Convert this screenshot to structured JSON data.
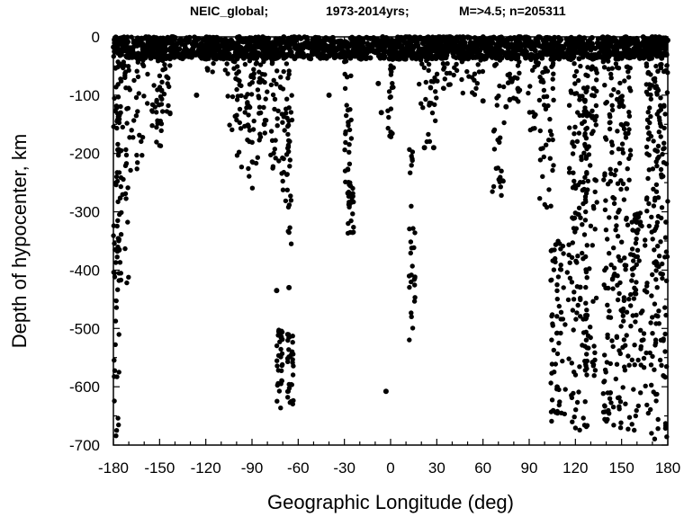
{
  "chart_data": {
    "type": "scatter",
    "title_parts": [
      "NEIC_global;",
      "1973-2014yrs;",
      "M=>4.5; n=205311"
    ],
    "xlabel": "Geographic Longitude  (deg)",
    "ylabel": "Depth of hypocenter, km",
    "xlim": [
      -180,
      180
    ],
    "ylim": [
      -700,
      0
    ],
    "xticks": [
      -180,
      -150,
      -120,
      -90,
      -60,
      -30,
      0,
      30,
      60,
      90,
      120,
      150,
      180
    ],
    "yticks": [
      0,
      -100,
      -200,
      -300,
      -400,
      -500,
      -600,
      -700
    ],
    "grid": false,
    "marker_color": "#000000",
    "clusters": [
      {
        "lon": [
          -180,
          -176
        ],
        "depth_range": [
          -700,
          0
        ]
      },
      {
        "lon": [
          -178,
          -170
        ],
        "depth_range": [
          -450,
          0
        ]
      },
      {
        "lon": [
          -172,
          -160
        ],
        "depth_range": [
          -230,
          0
        ]
      },
      {
        "lon": [
          -158,
          -148
        ],
        "depth_range": [
          -200,
          0
        ]
      },
      {
        "lon": [
          -150,
          -142
        ],
        "depth_range": [
          -150,
          0
        ]
      },
      {
        "lon": [
          -120,
          -114
        ],
        "depth_range": [
          -60,
          0
        ]
      },
      {
        "lon": [
          -108,
          -98
        ],
        "depth_range": [
          -160,
          0
        ]
      },
      {
        "lon": [
          -100,
          -92
        ],
        "depth_range": [
          -230,
          0
        ]
      },
      {
        "lon": [
          -93,
          -85
        ],
        "depth_range": [
          -280,
          0
        ]
      },
      {
        "lon": [
          -86,
          -80
        ],
        "depth_range": [
          -200,
          0
        ]
      },
      {
        "lon": [
          -78,
          -72
        ],
        "depth_range": [
          -230,
          0
        ]
      },
      {
        "lon": [
          -72,
          -66
        ],
        "depth_range": [
          -300,
          0
        ]
      },
      {
        "lon": [
          -68,
          -64
        ],
        "depth_range": [
          -360,
          0
        ]
      },
      {
        "lon": [
          -74,
          -70
        ],
        "depth_range": [
          -650,
          -500
        ]
      },
      {
        "lon": [
          -67,
          -63
        ],
        "depth_range": [
          -640,
          -510
        ]
      },
      {
        "lon": [
          -30,
          -25
        ],
        "depth_range": [
          -250,
          0
        ]
      },
      {
        "lon": [
          -28,
          -24
        ],
        "depth_range": [
          -340,
          -250
        ]
      },
      {
        "lon": [
          -2,
          2
        ],
        "depth_range": [
          -180,
          0
        ]
      },
      {
        "lon": [
          12,
          16
        ],
        "depth_range": [
          -520,
          -190
        ]
      },
      {
        "lon": [
          18,
          32
        ],
        "depth_range": [
          -180,
          0
        ]
      },
      {
        "lon": [
          34,
          44
        ],
        "depth_range": [
          -90,
          0
        ]
      },
      {
        "lon": [
          46,
          60
        ],
        "depth_range": [
          -100,
          0
        ]
      },
      {
        "lon": [
          66,
          74
        ],
        "depth_range": [
          -285,
          0
        ]
      },
      {
        "lon": [
          76,
          84
        ],
        "depth_range": [
          -120,
          0
        ]
      },
      {
        "lon": [
          88,
          96
        ],
        "depth_range": [
          -160,
          0
        ]
      },
      {
        "lon": [
          96,
          106
        ],
        "depth_range": [
          -300,
          0
        ]
      },
      {
        "lon": [
          104,
          116
        ],
        "depth_range": [
          -660,
          -350
        ]
      },
      {
        "lon": [
          116,
          128
        ],
        "depth_range": [
          -680,
          0
        ]
      },
      {
        "lon": [
          126,
          134
        ],
        "depth_range": [
          -600,
          -50
        ]
      },
      {
        "lon": [
          138,
          146
        ],
        "depth_range": [
          -670,
          0
        ]
      },
      {
        "lon": [
          146,
          156
        ],
        "depth_range": [
          -680,
          0
        ]
      },
      {
        "lon": [
          156,
          166
        ],
        "depth_range": [
          -680,
          -300
        ]
      },
      {
        "lon": [
          166,
          174
        ],
        "depth_range": [
          -700,
          0
        ]
      },
      {
        "lon": [
          172,
          180
        ],
        "depth_range": [
          -700,
          0
        ]
      }
    ],
    "sparse_points": [
      {
        "lon": -126,
        "depth": -100
      },
      {
        "lon": -82,
        "depth": -150
      },
      {
        "lon": -74,
        "depth": -435
      },
      {
        "lon": -66,
        "depth": -430
      },
      {
        "lon": -40,
        "depth": -100
      },
      {
        "lon": -8,
        "depth": -80
      },
      {
        "lon": -6,
        "depth": -130
      },
      {
        "lon": -3,
        "depth": -608
      },
      {
        "lon": 22,
        "depth": -190
      },
      {
        "lon": 28,
        "depth": -190
      },
      {
        "lon": 60,
        "depth": -110
      },
      {
        "lon": 75,
        "depth": -120
      }
    ]
  }
}
